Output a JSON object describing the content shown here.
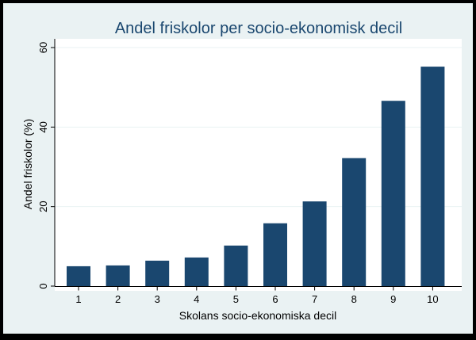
{
  "chart_data": {
    "type": "bar",
    "title": "Andel friskolor per socio-ekonomisk decil",
    "xlabel": "Skolans socio-ekonomiska decil",
    "ylabel": "Andel friskolor (%)",
    "categories": [
      "1",
      "2",
      "3",
      "4",
      "5",
      "6",
      "7",
      "8",
      "9",
      "10"
    ],
    "values": [
      5.0,
      5.2,
      6.4,
      7.2,
      10.2,
      15.8,
      21.3,
      32.2,
      46.6,
      55.2
    ],
    "yticks": [
      "0",
      "20",
      "40",
      "60"
    ],
    "ylim": [
      0,
      60
    ],
    "grid": true,
    "colors": {
      "bar": "#1a476f",
      "background": "#eaf2f3",
      "plot_area": "#ffffff",
      "border": "#000000"
    }
  }
}
